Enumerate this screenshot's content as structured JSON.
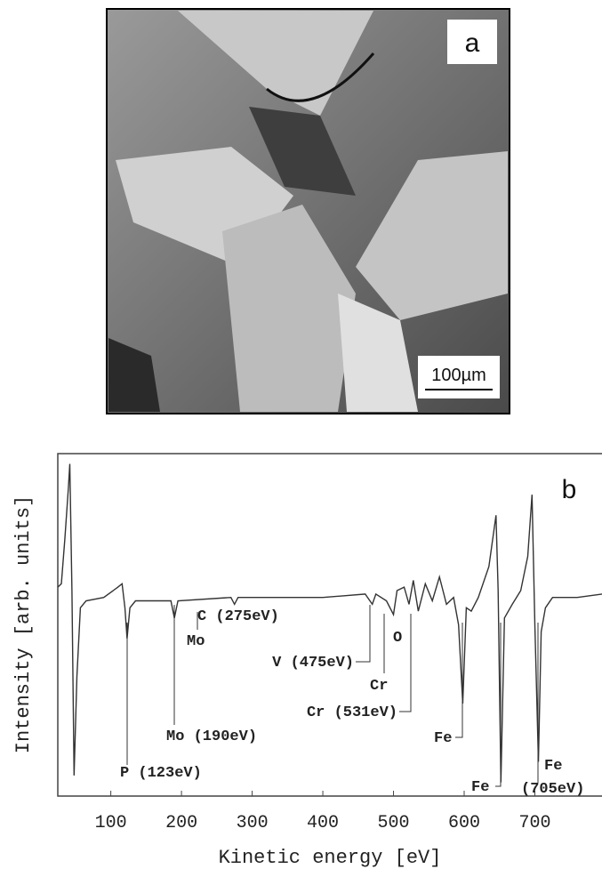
{
  "image_panel": {
    "label": "a",
    "scale_bar": "100µm"
  },
  "chart_data": {
    "type": "line",
    "panel_label": "b",
    "x_label": "Kinetic energy [eV]",
    "y_label": "Intensity [arb. units]",
    "x": [
      25,
      30,
      35,
      40,
      42,
      45,
      48,
      52,
      57,
      65,
      90,
      110,
      116,
      120,
      123,
      127,
      135,
      185,
      190,
      195,
      270,
      275,
      280,
      400,
      460,
      470,
      475,
      490,
      500,
      505,
      515,
      522,
      528,
      535,
      545,
      555,
      565,
      575,
      585,
      592,
      598,
      603,
      610,
      620,
      635,
      645,
      648,
      652,
      657,
      668,
      680,
      690,
      696,
      700,
      705,
      709,
      715,
      725,
      760,
      795
    ],
    "series": [
      {
        "color": "#333333",
        "values": [
          61,
          62,
          75,
          90,
          97,
          60,
          6,
          35,
          55,
          57,
          58,
          61,
          62,
          55,
          46,
          55,
          57,
          57,
          52,
          57,
          58,
          56,
          58,
          58,
          59,
          56,
          59,
          57,
          53,
          60,
          61,
          56,
          63,
          54,
          62,
          57,
          64,
          56,
          58,
          50,
          27,
          55,
          54,
          58,
          67,
          82,
          60,
          4,
          52,
          56,
          60,
          70,
          88,
          50,
          10,
          48,
          55,
          58,
          58,
          59
        ]
      }
    ],
    "xlim": [
      25,
      795
    ],
    "ylim": [
      0,
      100
    ],
    "xticks": [
      100,
      200,
      300,
      400,
      500,
      600,
      700
    ],
    "annotations": [
      "P (123eV)",
      "Mo (190eV)",
      "Mo",
      "C (275eV)",
      "V (475eV)",
      "Cr",
      "O",
      "Cr (531eV)",
      "Fe",
      "Fe",
      "Fe",
      "(705eV)"
    ]
  }
}
